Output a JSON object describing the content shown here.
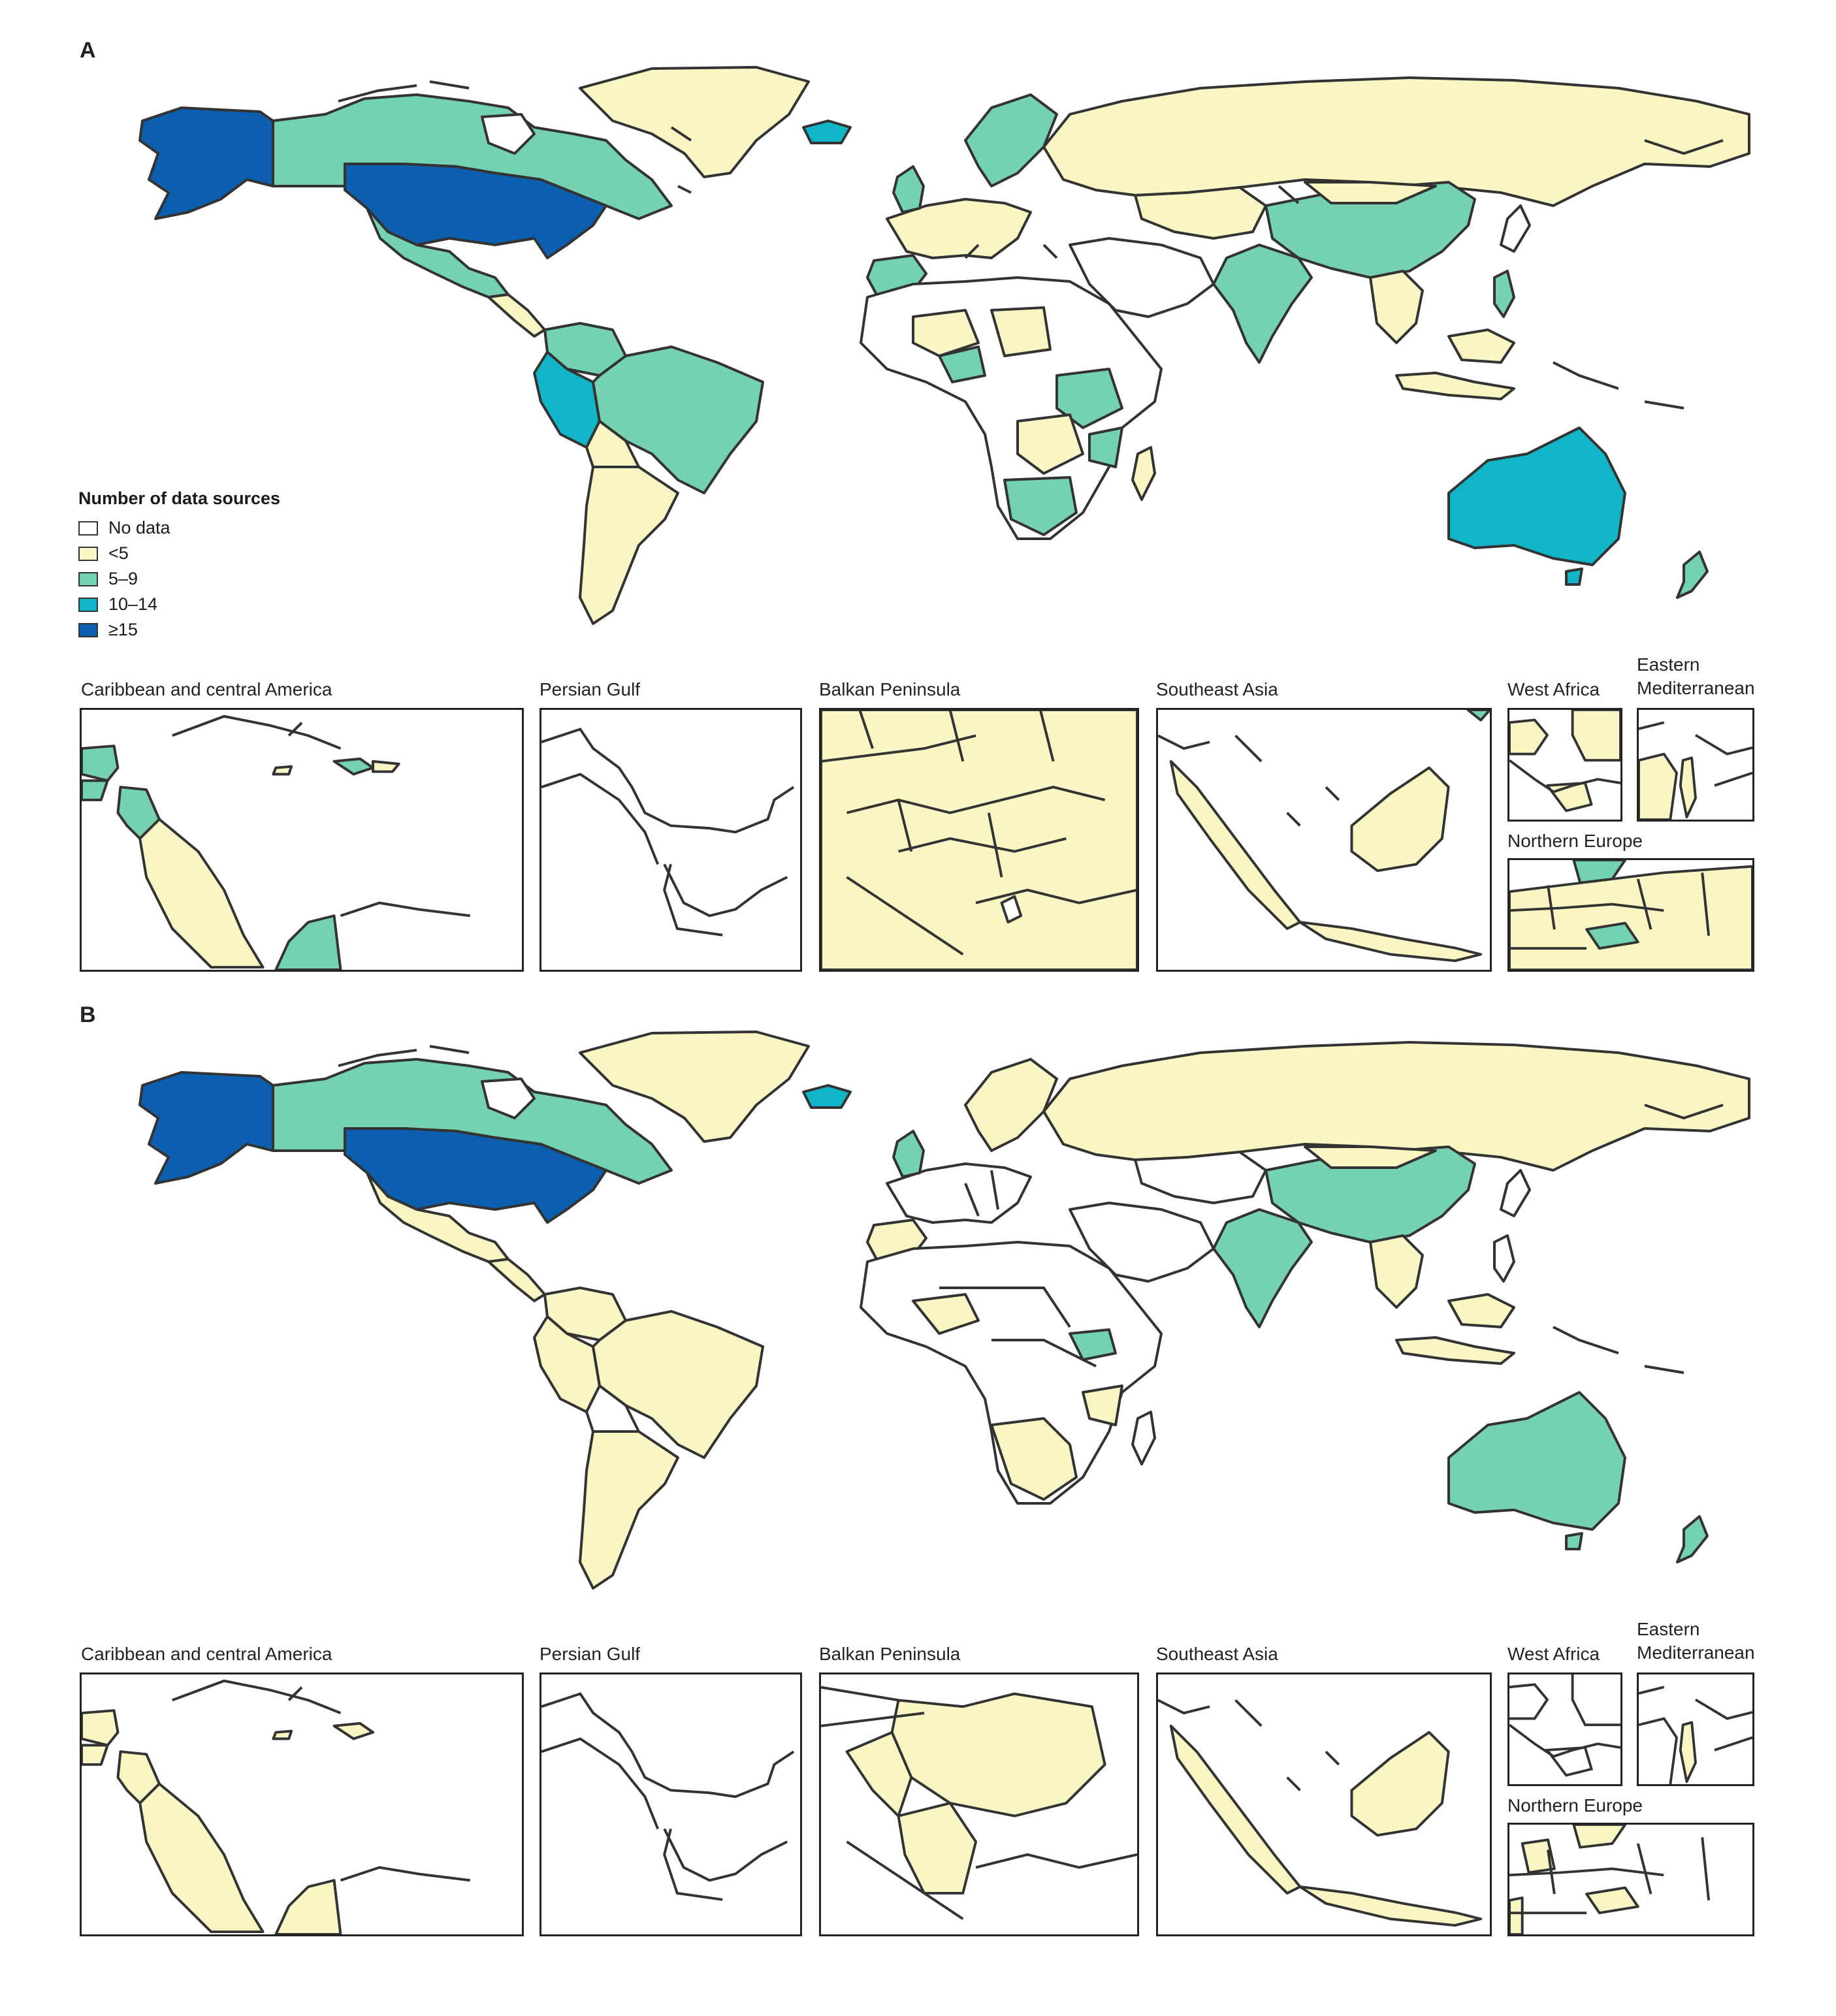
{
  "panels": [
    {
      "letter": "A"
    },
    {
      "letter": "B"
    }
  ],
  "legend": {
    "title": "Number of data sources",
    "items": [
      {
        "label": "No data",
        "color": "#ffffff"
      },
      {
        "label": "<5",
        "color": "#f9f6c4"
      },
      {
        "label": "5–9",
        "color": "#74d2b0"
      },
      {
        "label": "10–14",
        "color": "#10b6c8"
      },
      {
        "label": "≥15",
        "color": "#0b5fae"
      }
    ]
  },
  "insets": {
    "caribbean": "Caribbean and central America",
    "persian_gulf": "Persian Gulf",
    "balkan": "Balkan Peninsula",
    "southeast_asia": "Southeast Asia",
    "west_africa": "West Africa",
    "eastern_med_line1": "Eastern",
    "eastern_med_line2": "Mediterranean",
    "northern_europe": "Northern Europe"
  },
  "regions_A": {
    "usa": "≥15",
    "alaska": "≥15",
    "canada": "5–9",
    "mexico": "5–9",
    "brazil": "5–9",
    "peru": "10–14",
    "australia": "10–14",
    "iceland": "10–14",
    "china": "5–9",
    "india": "5–9",
    "russia": "<5",
    "greenland": "<5"
  },
  "regions_B": {
    "usa": "≥15",
    "alaska": "≥15",
    "canada": "5–9",
    "mexico": "<5",
    "brazil": "<5",
    "peru": "<5",
    "australia": "5–9",
    "iceland": "10–14",
    "china": "5–9",
    "india": "5–9",
    "russia": "<5",
    "greenland": "<5"
  },
  "colors": {
    "none": "#ffffff",
    "lt5": "#f9f6c4",
    "c5_9": "#74d2b0",
    "c10_14": "#10b6c8",
    "ge15": "#0b5fae",
    "stroke": "#333333"
  }
}
